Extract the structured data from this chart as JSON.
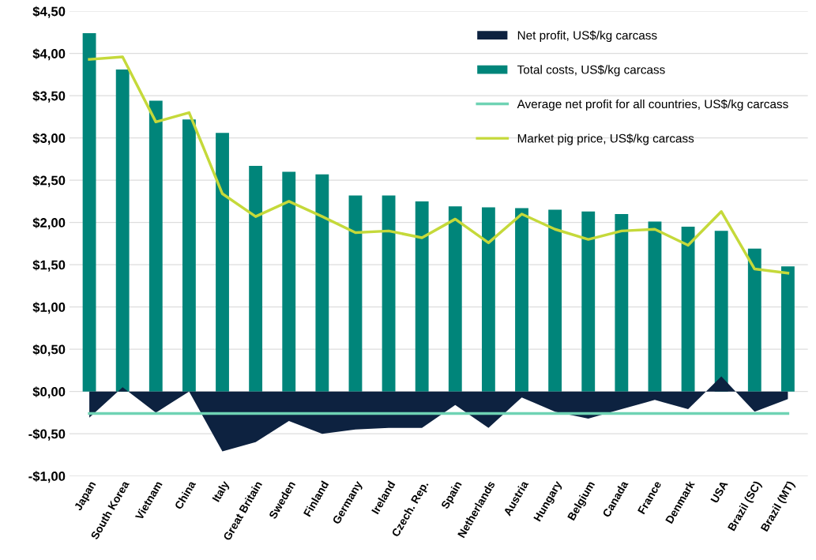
{
  "chart_data": {
    "type": "bar",
    "categories": [
      "Japan",
      "South Korea",
      "Vietnam",
      "China",
      "Italy",
      "Great Britain",
      "Sweden",
      "Finland",
      "Germany",
      "Ireland",
      "Czech. Rep.",
      "Spain",
      "Netherlands",
      "Austria",
      "Hungary",
      "Belgium",
      "Canada",
      "France",
      "Denmark",
      "USA",
      "Brazil (SC)",
      "Brazil (MT)"
    ],
    "series": [
      {
        "name": "Net profit, US$/kg carcass",
        "type": "area",
        "color": "#0d2240",
        "values": [
          -0.31,
          0.05,
          -0.25,
          0.0,
          -0.71,
          -0.6,
          -0.35,
          -0.5,
          -0.45,
          -0.43,
          -0.43,
          -0.16,
          -0.43,
          -0.07,
          -0.24,
          -0.32,
          -0.21,
          -0.1,
          -0.21,
          0.18,
          -0.24,
          -0.09
        ]
      },
      {
        "name": "Total costs, US$/kg carcass",
        "color": "#00857a",
        "values": [
          4.24,
          3.81,
          3.44,
          3.22,
          3.06,
          2.67,
          2.6,
          2.57,
          2.32,
          2.32,
          2.25,
          2.19,
          2.18,
          2.17,
          2.15,
          2.13,
          2.1,
          2.01,
          1.95,
          1.9,
          1.69,
          1.48
        ]
      },
      {
        "name": "Average net profit for all countries, US$/kg carcass",
        "type": "line",
        "color": "#6fd3b4",
        "values": [
          -0.26,
          -0.26,
          -0.26,
          -0.26,
          -0.26,
          -0.26,
          -0.26,
          -0.26,
          -0.26,
          -0.26,
          -0.26,
          -0.26,
          -0.26,
          -0.26,
          -0.26,
          -0.26,
          -0.26,
          -0.26,
          -0.26,
          -0.26,
          -0.26,
          -0.26
        ]
      },
      {
        "name": "Market pig price, US$/kg carcass",
        "type": "line",
        "color": "#c5d93a",
        "values": [
          3.93,
          3.96,
          3.19,
          3.3,
          2.34,
          2.07,
          2.25,
          2.07,
          1.88,
          1.9,
          1.82,
          2.04,
          1.76,
          2.1,
          1.92,
          1.8,
          1.9,
          1.92,
          1.73,
          2.13,
          1.45,
          1.4
        ]
      }
    ],
    "ylim": [
      -1.0,
      4.5
    ],
    "yticks": [
      {
        "value": -1.0,
        "label": "-$1,00"
      },
      {
        "value": -0.5,
        "label": "-$0,50"
      },
      {
        "value": 0.0,
        "label": "$0,00"
      },
      {
        "value": 0.5,
        "label": "$0,50"
      },
      {
        "value": 1.0,
        "label": "$1,00"
      },
      {
        "value": 1.5,
        "label": "$1,50"
      },
      {
        "value": 2.0,
        "label": "$2,00"
      },
      {
        "value": 2.5,
        "label": "$2,50"
      },
      {
        "value": 3.0,
        "label": "$3,00"
      },
      {
        "value": 3.5,
        "label": "$3,50"
      },
      {
        "value": 4.0,
        "label": "$4,00"
      },
      {
        "value": 4.5,
        "label": "$4,50"
      }
    ],
    "grid": "y",
    "legend": "top right"
  }
}
